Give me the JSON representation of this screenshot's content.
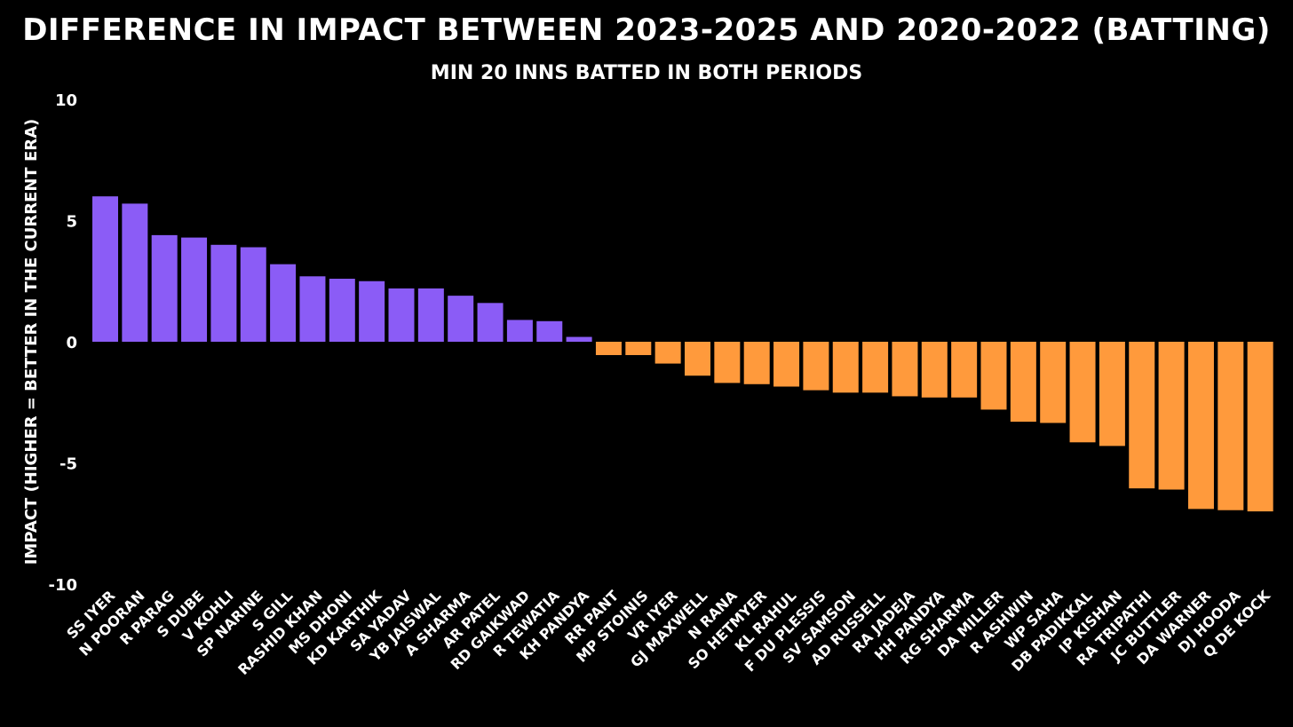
{
  "chart_data": {
    "type": "bar",
    "title": "DIFFERENCE IN IMPACT BETWEEN 2023-2025 AND 2020-2022 (BATTING)",
    "subtitle": "MIN 20 INNS BATTED IN BOTH PERIODS",
    "xlabel": "",
    "ylabel": "IMPACT (HIGHER = BETTER IN THE CURRENT ERA)",
    "ylim": [
      -10,
      10
    ],
    "yticks": [
      10,
      5,
      0,
      -5,
      -10
    ],
    "grid": false,
    "positive_color": "#8B5CF6",
    "negative_color": "#FF9A3C",
    "categories": [
      "SS IYER",
      "N POORAN",
      "R PARAG",
      "S DUBE",
      "V KOHLI",
      "SP NARINE",
      "S GILL",
      "RASHID KHAN",
      "MS DHONI",
      "KD KARTHIK",
      "SA YADAV",
      "YB JAISWAL",
      "A SHARMA",
      "AR PATEL",
      "RD GAIKWAD",
      "R TEWATIA",
      "KH PANDYA",
      "RR PANT",
      "MP STOINIS",
      "VR IYER",
      "GJ MAXWELL",
      "N RANA",
      "SO HETMYER",
      "KL RAHUL",
      "F DU PLESSIS",
      "SV SAMSON",
      "AD RUSSELL",
      "RA JADEJA",
      "HH PANDYA",
      "RG SHARMA",
      "DA MILLER",
      "R ASHWIN",
      "WP SAHA",
      "DB PADIKKAL",
      "IP KISHAN",
      "RA TRIPATHI",
      "JC BUTTLER",
      "DA WARNER",
      "DJ HOODA",
      "Q DE KOCK"
    ],
    "values": [
      6.0,
      5.7,
      4.4,
      4.3,
      4.0,
      3.9,
      3.2,
      2.7,
      2.6,
      2.5,
      2.2,
      2.2,
      1.9,
      1.6,
      0.9,
      0.85,
      0.2,
      -0.55,
      -0.55,
      -0.9,
      -1.4,
      -1.7,
      -1.75,
      -1.85,
      -2.0,
      -2.1,
      -2.1,
      -2.25,
      -2.3,
      -2.3,
      -2.8,
      -3.3,
      -3.35,
      -4.15,
      -4.3,
      -6.05,
      -6.1,
      -6.9,
      -6.95,
      -7.0
    ]
  }
}
